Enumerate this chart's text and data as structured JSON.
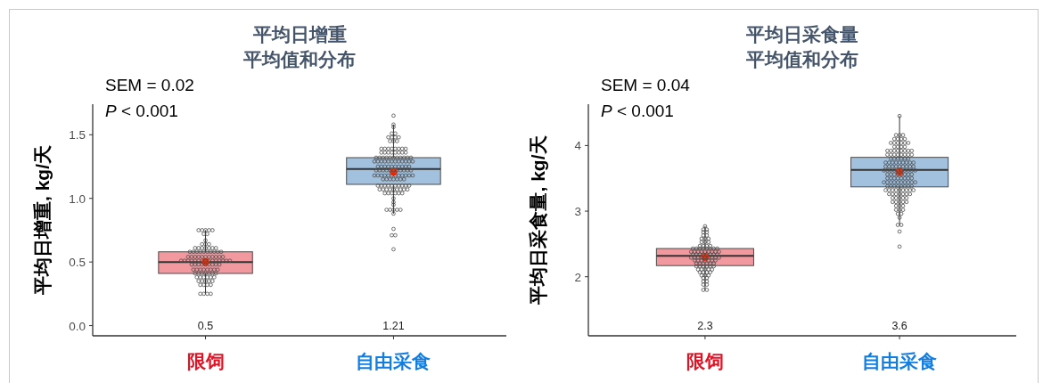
{
  "chart_data": [
    {
      "type": "box",
      "title": "平均日增重",
      "subtitle": "平均值和分布",
      "ylabel": "平均日增重, kg/天",
      "categories": [
        "限饲",
        "自由采食"
      ],
      "colors": [
        "#f2989f",
        "#a2c1de"
      ],
      "boxes": [
        {
          "low": 0.25,
          "q1": 0.41,
          "median": 0.5,
          "q3": 0.58,
          "high": 0.75,
          "mean": 0.5
        },
        {
          "low": 0.88,
          "q1": 1.11,
          "median": 1.23,
          "q3": 1.32,
          "high": 1.58,
          "mean": 1.21
        }
      ],
      "series": [
        {
          "type": "scatter",
          "color": "#4d4d4d",
          "x": [
            "限饲",
            "限饲",
            "限饲",
            "限饲",
            "限饲",
            "限饲",
            "限饲",
            "限饲",
            "限饲",
            "限饲",
            "限饲",
            "限饲",
            "限饲",
            "限饲",
            "限饲",
            "限饲",
            "限饲",
            "限饲",
            "限饲",
            "限饲",
            "限饲",
            "限饲",
            "限饲",
            "限饲",
            "限饲",
            "限饲",
            "限饲",
            "限饲",
            "限饲",
            "限饲",
            "限饲",
            "限饲",
            "限饲",
            "限饲",
            "限饲",
            "限饲",
            "限饲",
            "限饲",
            "限饲",
            "限饲",
            "限饲",
            "限饲",
            "限饲",
            "限饲",
            "限饲",
            "限饲",
            "限饲",
            "限饲",
            "限饲",
            "限饲",
            "限饲",
            "限饲",
            "限饲",
            "限饲",
            "限饲",
            "限饲",
            "限饲",
            "限饲",
            "限饲",
            "限饲",
            "限饲",
            "限饲",
            "限饲",
            "限饲",
            "限饲",
            "限饲",
            "限饲",
            "限饲",
            "限饲",
            "限饲",
            "限饲",
            "限饲",
            "限饲",
            "限饲",
            "限饲",
            "限饲",
            "限饲",
            "限饲",
            "限饲",
            "限饲",
            "限饲",
            "限饲",
            "限饲",
            "限饲",
            "限饲",
            "限饲",
            "限饲",
            "限饲",
            "限饲",
            "限饲",
            "限饲",
            "限饲",
            "限饲",
            "限饲",
            "限饲",
            "限饲",
            "限饲",
            "自由采食",
            "自由采食",
            "自由采食",
            "自由采食",
            "自由采食",
            "自由采食",
            "自由采食",
            "自由采食",
            "自由采食",
            "自由采食",
            "自由采食",
            "自由采食",
            "自由采食",
            "自由采食",
            "自由采食",
            "自由采食",
            "自由采食",
            "自由采食",
            "自由采食",
            "自由采食",
            "自由采食",
            "自由采食",
            "自由采食",
            "自由采食",
            "自由采食",
            "自由采食",
            "自由采食",
            "自由采食",
            "自由采食",
            "自由采食",
            "自由采食",
            "自由采食",
            "自由采食",
            "自由采食",
            "自由采食",
            "自由采食",
            "自由采食",
            "自由采食",
            "自由采食",
            "自由采食",
            "自由采食",
            "自由采食",
            "自由采食",
            "自由采食",
            "自由采食",
            "自由采食",
            "自由采食",
            "自由采食",
            "自由采食",
            "自由采食",
            "自由采食",
            "自由采食",
            "自由采食",
            "自由采食",
            "自由采食",
            "自由采食",
            "自由采食",
            "自由采食",
            "自由采食",
            "自由采食",
            "自由采食",
            "自由采食",
            "自由采食",
            "自由采食",
            "自由采食",
            "自由采食",
            "自由采食",
            "自由采食",
            "自由采食",
            "自由采食",
            "自由采食",
            "自由采食",
            "自由采食",
            "自由采食",
            "自由采食",
            "自由采食",
            "自由采食",
            "自由采食",
            "自由采食",
            "自由采食",
            "自由采食",
            "自由采食",
            "自由采食",
            "自由采食",
            "自由采食",
            "自由采食",
            "自由采食",
            "自由采食",
            "自由采食",
            "自由采食",
            "自由采食",
            "自由采食",
            "自由采食",
            "自由采食",
            "自由采食",
            "自由采食",
            "自由采食",
            "自由采食",
            "自由采食",
            "自由采食",
            "自由采食",
            "自由采食",
            "自由采食",
            "自由采食",
            "自由采食",
            "自由采食",
            "自由采食",
            "自由采食",
            "自由采食",
            "自由采食",
            "自由采食",
            "自由采食",
            "自由采食",
            "自由采食",
            "自由采食",
            "自由采食",
            "自由采食",
            "自由采食",
            "自由采食",
            "自由采食",
            "自由采食",
            "自由采食",
            "自由采食",
            "自由采食",
            "自由采食",
            "自由采食",
            "自由采食",
            "自由采食",
            "自由采食"
          ],
          "values": [
            0.75,
            0.75,
            0.75,
            0.75,
            0.75,
            0.72,
            0.72,
            0.67,
            0.64,
            0.64,
            0.64,
            0.61,
            0.61,
            0.61,
            0.61,
            0.61,
            0.61,
            0.61,
            0.58,
            0.58,
            0.58,
            0.58,
            0.58,
            0.58,
            0.58,
            0.58,
            0.58,
            0.58,
            0.54,
            0.54,
            0.54,
            0.54,
            0.54,
            0.54,
            0.54,
            0.54,
            0.54,
            0.54,
            0.54,
            0.51,
            0.51,
            0.51,
            0.51,
            0.51,
            0.51,
            0.51,
            0.51,
            0.51,
            0.51,
            0.51,
            0.51,
            0.51,
            0.51,
            0.51,
            0.48,
            0.48,
            0.48,
            0.48,
            0.48,
            0.48,
            0.48,
            0.48,
            0.48,
            0.44,
            0.44,
            0.44,
            0.44,
            0.44,
            0.44,
            0.44,
            0.44,
            0.41,
            0.41,
            0.41,
            0.41,
            0.41,
            0.41,
            0.41,
            0.38,
            0.38,
            0.38,
            0.38,
            0.38,
            0.38,
            0.35,
            0.35,
            0.35,
            0.35,
            0.35,
            0.32,
            0.32,
            0.32,
            0.32,
            0.25,
            0.25,
            0.25,
            0.25,
            1.65,
            1.58,
            1.56,
            1.51,
            1.51,
            1.48,
            1.48,
            1.48,
            1.48,
            1.45,
            1.45,
            1.45,
            1.39,
            1.39,
            1.39,
            1.39,
            1.39,
            1.39,
            1.39,
            1.39,
            1.36,
            1.36,
            1.36,
            1.36,
            1.36,
            1.36,
            1.36,
            1.36,
            1.32,
            1.32,
            1.32,
            1.32,
            1.32,
            1.32,
            1.32,
            1.32,
            1.32,
            1.32,
            1.32,
            1.29,
            1.29,
            1.29,
            1.29,
            1.29,
            1.29,
            1.29,
            1.29,
            1.29,
            1.29,
            1.29,
            1.29,
            1.25,
            1.25,
            1.25,
            1.25,
            1.25,
            1.25,
            1.25,
            1.25,
            1.25,
            1.25,
            1.22,
            1.22,
            1.22,
            1.22,
            1.22,
            1.22,
            1.22,
            1.22,
            1.22,
            1.22,
            1.22,
            1.18,
            1.18,
            1.18,
            1.18,
            1.18,
            1.18,
            1.18,
            1.18,
            1.18,
            1.18,
            1.18,
            1.18,
            1.15,
            1.15,
            1.15,
            1.15,
            1.15,
            1.15,
            1.15,
            1.1,
            1.1,
            1.1,
            1.1,
            1.1,
            1.1,
            1.1,
            1.1,
            1.1,
            1.1,
            1.07,
            1.07,
            1.07,
            1.07,
            1.07,
            1.07,
            1.07,
            1.07,
            1.07,
            1.04,
            1.04,
            1.04,
            1.04,
            1.04,
            1.04,
            1.0,
            0.97,
            0.95,
            0.91,
            0.91,
            0.91,
            0.91,
            0.91,
            0.88,
            0.76,
            0.71,
            0.71,
            0.6
          ]
        }
      ],
      "marker": "circle",
      "ylim": [
        -0.08,
        1.74
      ],
      "yticks": [
        {
          "value": 0,
          "label": "0.0"
        },
        0.5,
        {
          "value": 1,
          "label": "1.0"
        },
        1.5
      ],
      "annotations": [
        "SEM = 0.02",
        "*P* < 0.001",
        "0.5",
        "1.21"
      ]
    },
    {
      "type": "box",
      "title": "平均日采食量",
      "subtitle": "平均值和分布",
      "ylabel": "平均日采食量, kg/天",
      "categories": [
        "限饲",
        "自由采食"
      ],
      "colors": [
        "#f2989f",
        "#a2c1de"
      ],
      "boxes": [
        {
          "low": 1.8,
          "q1": 2.17,
          "median": 2.32,
          "q3": 2.43,
          "high": 2.77,
          "mean": 2.3
        },
        {
          "low": 2.79,
          "q1": 3.37,
          "median": 3.63,
          "q3": 3.82,
          "high": 4.45,
          "mean": 3.6
        }
      ],
      "series": [
        {
          "type": "scatter",
          "color": "#4d4d4d",
          "x": [
            "限饲",
            "限饲",
            "限饲",
            "限饲",
            "限饲",
            "限饲",
            "限饲",
            "限饲",
            "限饲",
            "限饲",
            "限饲",
            "限饲",
            "限饲",
            "限饲",
            "限饲",
            "限饲",
            "限饲",
            "限饲",
            "限饲",
            "限饲",
            "限饲",
            "限饲",
            "限饲",
            "限饲",
            "限饲",
            "限饲",
            "限饲",
            "限饲",
            "限饲",
            "限饲",
            "限饲",
            "限饲",
            "限饲",
            "限饲",
            "限饲",
            "限饲",
            "限饲",
            "限饲",
            "限饲",
            "限饲",
            "限饲",
            "限饲",
            "限饲",
            "限饲",
            "限饲",
            "限饲",
            "限饲",
            "限饲",
            "限饲",
            "限饲",
            "限饲",
            "限饲",
            "限饲",
            "限饲",
            "限饲",
            "限饲",
            "限饲",
            "限饲",
            "限饲",
            "限饲",
            "限饲",
            "限饲",
            "限饲",
            "限饲",
            "限饲",
            "限饲",
            "限饲",
            "限饲",
            "限饲",
            "限饲",
            "限饲",
            "限饲",
            "限饲",
            "限饲",
            "限饲",
            "限饲",
            "限饲",
            "限饲",
            "限饲",
            "限饲",
            "限饲",
            "限饲",
            "限饲",
            "限饲",
            "限饲",
            "限饲",
            "限饲",
            "限饲",
            "限饲",
            "限饲",
            "自由采食",
            "自由采食",
            "自由采食",
            "自由采食",
            "自由采食",
            "自由采食",
            "自由采食",
            "自由采食",
            "自由采食",
            "自由采食",
            "自由采食",
            "自由采食",
            "自由采食",
            "自由采食",
            "自由采食",
            "自由采食",
            "自由采食",
            "自由采食",
            "自由采食",
            "自由采食",
            "自由采食",
            "自由采食",
            "自由采食",
            "自由采食",
            "自由采食",
            "自由采食",
            "自由采食",
            "自由采食",
            "自由采食",
            "自由采食",
            "自由采食",
            "自由采食",
            "自由采食",
            "自由采食",
            "自由采食",
            "自由采食",
            "自由采食",
            "自由采食",
            "自由采食",
            "自由采食",
            "自由采食",
            "自由采食",
            "自由采食",
            "自由采食",
            "自由采食",
            "自由采食",
            "自由采食",
            "自由采食",
            "自由采食",
            "自由采食",
            "自由采食",
            "自由采食",
            "自由采食",
            "自由采食",
            "自由采食",
            "自由采食",
            "自由采食",
            "自由采食",
            "自由采食",
            "自由采食",
            "自由采食",
            "自由采食",
            "自由采食",
            "自由采食",
            "自由采食",
            "自由采食",
            "自由采食",
            "自由采食",
            "自由采食",
            "自由采食",
            "自由采食",
            "自由采食",
            "自由采食",
            "自由采食",
            "自由采食",
            "自由采食",
            "自由采食",
            "自由采食",
            "自由采食",
            "自由采食",
            "自由采食",
            "自由采食",
            "自由采食",
            "自由采食",
            "自由采食",
            "自由采食",
            "自由采食",
            "自由采食",
            "自由采食",
            "自由采食",
            "自由采食",
            "自由采食",
            "自由采食",
            "自由采食",
            "自由采食",
            "自由采食",
            "自由采食",
            "自由采食",
            "自由采食",
            "自由采食",
            "自由采食",
            "自由采食",
            "自由采食",
            "自由采食",
            "自由采食",
            "自由采食",
            "自由采食",
            "自由采食",
            "自由采食",
            "自由采食",
            "自由采食",
            "自由采食",
            "自由采食",
            "自由采食",
            "自由采食",
            "自由采食",
            "自由采食",
            "自由采食",
            "自由采食",
            "自由采食",
            "自由采食",
            "自由采食",
            "自由采食",
            "自由采食",
            "自由采食",
            "自由采食",
            "自由采食",
            "自由采食",
            "自由采食",
            "自由采食",
            "自由采食",
            "自由采食",
            "自由采食",
            "自由采食",
            "自由采食",
            "自由采食",
            "自由采食",
            "自由采食",
            "自由采食",
            "自由采食",
            "自由采食"
          ],
          "values": [
            2.77,
            2.72,
            2.72,
            2.68,
            2.68,
            2.63,
            2.63,
            2.58,
            2.58,
            2.58,
            2.53,
            2.53,
            2.53,
            2.47,
            2.47,
            2.47,
            2.47,
            2.43,
            2.43,
            2.43,
            2.43,
            2.43,
            2.43,
            2.43,
            2.43,
            2.38,
            2.38,
            2.38,
            2.38,
            2.38,
            2.38,
            2.38,
            2.38,
            2.38,
            2.34,
            2.34,
            2.34,
            2.34,
            2.34,
            2.34,
            2.34,
            2.34,
            2.29,
            2.29,
            2.29,
            2.29,
            2.29,
            2.29,
            2.29,
            2.29,
            2.29,
            2.25,
            2.25,
            2.25,
            2.25,
            2.25,
            2.25,
            2.25,
            2.2,
            2.2,
            2.2,
            2.2,
            2.2,
            2.2,
            2.16,
            2.16,
            2.16,
            2.16,
            2.16,
            2.16,
            2.11,
            2.11,
            2.11,
            2.11,
            2.11,
            2.07,
            2.07,
            2.07,
            2.07,
            2.02,
            2.02,
            2.02,
            1.98,
            1.98,
            1.93,
            1.93,
            1.88,
            1.88,
            1.8,
            1.8,
            4.45,
            4.16,
            4.16,
            4.16,
            4.1,
            4.1,
            4.1,
            4.1,
            4.04,
            4.04,
            4.04,
            4.04,
            4.04,
            4.04,
            3.98,
            3.98,
            3.98,
            3.98,
            3.92,
            3.92,
            3.92,
            3.92,
            3.92,
            3.92,
            3.92,
            3.92,
            3.86,
            3.86,
            3.86,
            3.86,
            3.86,
            3.86,
            3.86,
            3.86,
            3.8,
            3.8,
            3.8,
            3.8,
            3.8,
            3.8,
            3.74,
            3.74,
            3.74,
            3.74,
            3.74,
            3.74,
            3.74,
            3.74,
            3.74,
            3.68,
            3.68,
            3.68,
            3.68,
            3.68,
            3.68,
            3.68,
            3.68,
            3.68,
            3.62,
            3.62,
            3.62,
            3.62,
            3.62,
            3.62,
            3.62,
            3.62,
            3.62,
            3.62,
            3.56,
            3.56,
            3.56,
            3.56,
            3.56,
            3.56,
            3.56,
            3.56,
            3.5,
            3.5,
            3.5,
            3.5,
            3.5,
            3.5,
            3.5,
            3.5,
            3.44,
            3.44,
            3.44,
            3.44,
            3.44,
            3.44,
            3.44,
            3.44,
            3.44,
            3.44,
            3.38,
            3.38,
            3.38,
            3.38,
            3.38,
            3.38,
            3.38,
            3.38,
            3.32,
            3.32,
            3.32,
            3.32,
            3.32,
            3.32,
            3.32,
            3.32,
            3.32,
            3.26,
            3.26,
            3.26,
            3.26,
            3.26,
            3.26,
            3.26,
            3.2,
            3.2,
            3.2,
            3.2,
            3.2,
            3.14,
            3.14,
            3.14,
            3.14,
            3.14,
            3.08,
            3.08,
            3.08,
            3.02,
            3.02,
            3.02,
            2.96,
            2.96,
            2.9,
            2.79,
            2.79,
            2.69,
            2.46
          ]
        }
      ],
      "marker": "circle",
      "ylim": [
        1.1,
        4.63
      ],
      "yticks": [
        2,
        3,
        4
      ],
      "annotations": [
        "SEM = 0.04",
        "*P* < 0.001",
        "2.3",
        "3.6"
      ]
    }
  ]
}
